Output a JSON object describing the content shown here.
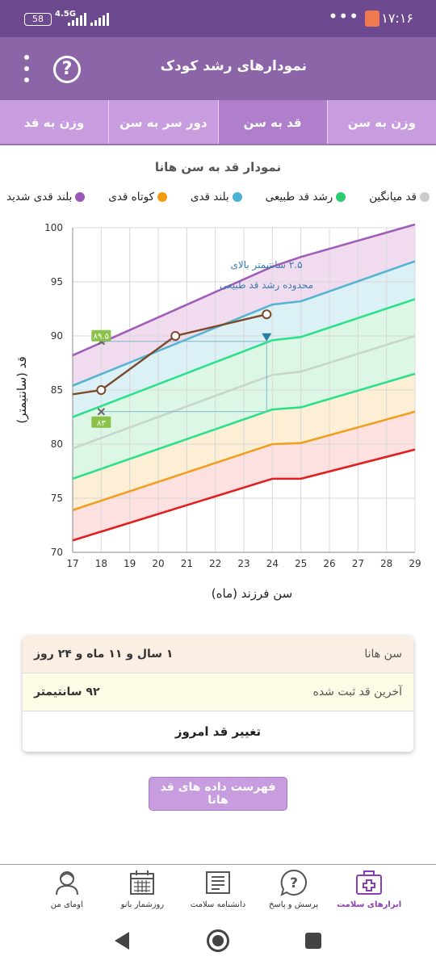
{
  "status_bar": {
    "time": "۱۷:۱۶",
    "battery": "58",
    "network": "4.5G",
    "more": "•••"
  },
  "app_bar": {
    "title": "نمودارهای رشد کودک",
    "help_label": "?"
  },
  "tabs": [
    {
      "label": "وزن به سن",
      "active": false
    },
    {
      "label": "قد به سن",
      "active": true
    },
    {
      "label": "دور سر به سن",
      "active": false
    },
    {
      "label": "وزن به قد",
      "active": false
    }
  ],
  "chart_title": "نمودار قد به سن هانا",
  "legend": [
    {
      "label": "بلند قدی شدید",
      "color": "#9b59b6"
    },
    {
      "label": "کوتاه قدی",
      "color": "#f39c12"
    },
    {
      "label": "بلند قدی",
      "color": "#4ab3d3"
    },
    {
      "label": "رشد قد طبیعی",
      "color": "#2ecc71"
    },
    {
      "label": "قد میانگین",
      "color": "#cccccc"
    }
  ],
  "chart_data": {
    "type": "line",
    "xlabel": "سن فرزند (ماه)",
    "ylabel": "قد (سانتیمتر)",
    "xlim": [
      17,
      29
    ],
    "ylim": [
      70,
      100
    ],
    "x_ticks": [
      17,
      18,
      19,
      20,
      21,
      22,
      23,
      24,
      25,
      26,
      27,
      28,
      29
    ],
    "y_ticks": [
      70,
      75,
      80,
      85,
      90,
      95,
      100
    ],
    "grid": true,
    "reference_x": [
      17,
      24,
      25,
      29
    ],
    "reference_lines": [
      {
        "key": "very_tall",
        "color": "#a05cb8",
        "values": [
          88.2,
          96.4,
          97.3,
          100.3
        ]
      },
      {
        "key": "tall",
        "color": "#56b4d3",
        "values": [
          85.4,
          92.9,
          93.2,
          96.9
        ]
      },
      {
        "key": "normal_upper",
        "color": "#2ee08a",
        "values": [
          82.5,
          89.6,
          89.9,
          93.4
        ]
      },
      {
        "key": "average",
        "color": "#c8d6cc",
        "values": [
          79.6,
          86.4,
          86.7,
          90.0
        ]
      },
      {
        "key": "normal_lower",
        "color": "#2ee08a",
        "values": [
          76.8,
          83.2,
          83.4,
          86.5
        ]
      },
      {
        "key": "short",
        "color": "#f0a020",
        "values": [
          73.9,
          80.0,
          80.1,
          83.0
        ]
      },
      {
        "key": "very_short",
        "color": "#e02020",
        "values": [
          71.1,
          76.8,
          76.8,
          79.5
        ]
      }
    ],
    "band_fills": [
      "#f1dcef",
      "#dcf1f6",
      "#dcf7e6",
      "#dcf7e6",
      "#fdefd6",
      "#fde0e0"
    ],
    "series": {
      "color": "#7a4a2a",
      "x": [
        17,
        18,
        20.6,
        23.8
      ],
      "y": [
        84.6,
        85,
        90,
        92
      ]
    },
    "markers": [
      {
        "x": 18,
        "y": 89.5,
        "label": "۸۹.۵"
      },
      {
        "x": 18,
        "y": 83,
        "label": "۸۳"
      }
    ],
    "annotation": {
      "x": 23.8,
      "from_y": 83,
      "to_y": 89.5,
      "text_line1": "۲.۵ سانتیمتر بالای",
      "text_line2": "محدوده رشد قد طبیعی"
    }
  },
  "card": {
    "age_label": "سن هانا",
    "age_value": "۱ سال و ۱۱ ماه و ۲۴ روز",
    "last_height_label": "آخرین قد ثبت شده",
    "last_height_value": "۹۲ سانتیمتر",
    "change_button": "تغییر قد امروز"
  },
  "list_button": "فهرست داده های قد هانا",
  "bottom_nav": [
    {
      "label": "ابزارهای سلامت",
      "icon": "medical-kit-icon",
      "active": true
    },
    {
      "label": "پرسش و پاسخ",
      "icon": "question-bubble-icon",
      "active": false
    },
    {
      "label": "دانشنامه سلامت",
      "icon": "encyclopedia-icon",
      "active": false
    },
    {
      "label": "روزشمار بانو",
      "icon": "calendar-icon",
      "active": false
    },
    {
      "label": "اومای من",
      "icon": "profile-icon",
      "active": false
    }
  ]
}
